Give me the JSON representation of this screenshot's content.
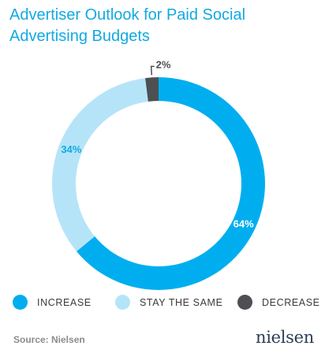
{
  "title_line1": "Advertiser Outlook for Paid Social",
  "title_line2": "Advertising Budgets",
  "chart_data": {
    "type": "pie",
    "donut": true,
    "categories": [
      "INCREASE",
      "STAY THE SAME",
      "DECREASE"
    ],
    "values": [
      64,
      34,
      2
    ],
    "labels": [
      "64%",
      "34%",
      "2%"
    ],
    "colors": [
      "#00aeef",
      "#b5e4f9",
      "#4d4f53"
    ]
  },
  "legend": [
    {
      "label": "INCREASE",
      "color": "#00aeef"
    },
    {
      "label": "STAY THE SAME",
      "color": "#b5e4f9"
    },
    {
      "label": "DECREASE",
      "color": "#4d4f53"
    }
  ],
  "source": "Source: Nielsen",
  "brand": "nielsen"
}
